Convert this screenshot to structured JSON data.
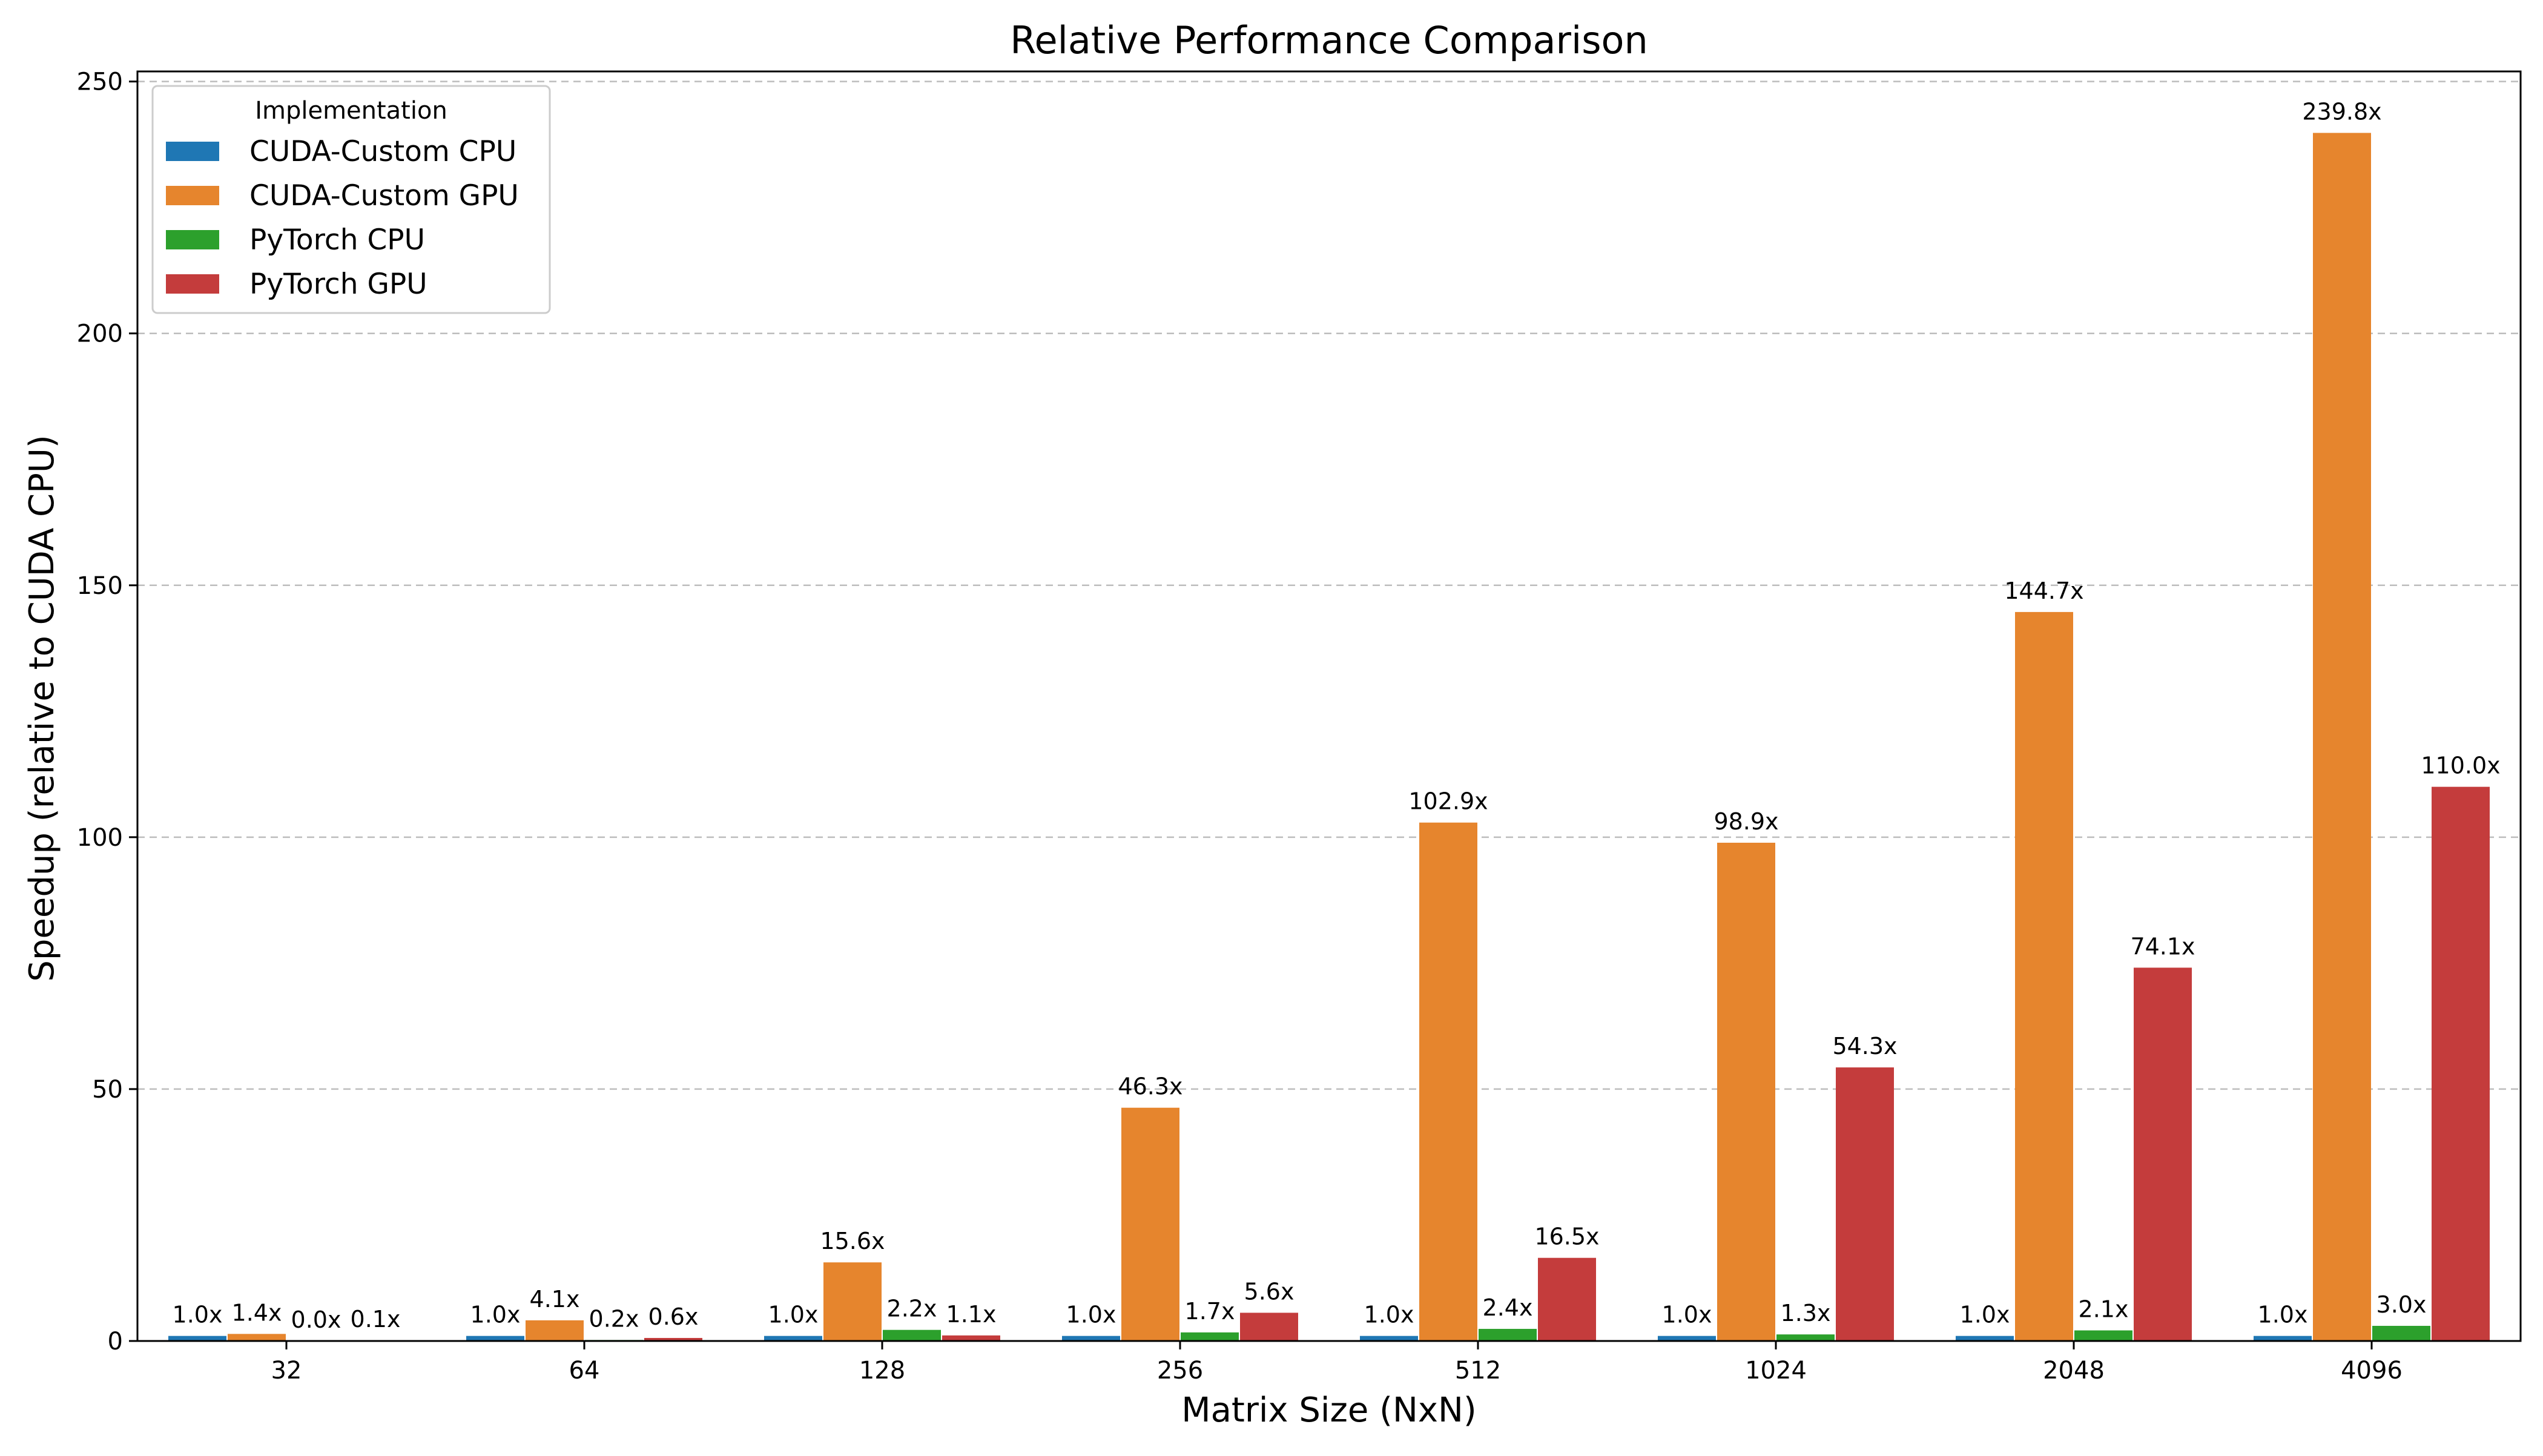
{
  "chart_data": {
    "type": "bar",
    "title": "Relative Performance Comparison",
    "xlabel": "Matrix Size (NxN)",
    "ylabel": "Speedup (relative to CUDA CPU)",
    "categories": [
      "32",
      "64",
      "128",
      "256",
      "512",
      "1024",
      "2048",
      "4096"
    ],
    "ylim": [
      0,
      252
    ],
    "yticks": [
      0,
      50,
      100,
      150,
      200,
      250
    ],
    "grid": "y-dashed",
    "legend": {
      "title": "Implementation",
      "position": "top-left"
    },
    "series": [
      {
        "name": "CUDA-Custom CPU",
        "color": "#1f77b4",
        "values": [
          1.0,
          1.0,
          1.0,
          1.0,
          1.0,
          1.0,
          1.0,
          1.0
        ],
        "labels": [
          "1.0x",
          "1.0x",
          "1.0x",
          "1.0x",
          "1.0x",
          "1.0x",
          "1.0x",
          "1.0x"
        ]
      },
      {
        "name": "CUDA-Custom GPU",
        "color": "#e6852d",
        "values": [
          1.4,
          4.1,
          15.6,
          46.3,
          102.9,
          98.9,
          144.7,
          239.8
        ],
        "labels": [
          "1.4x",
          "4.1x",
          "15.6x",
          "46.3x",
          "102.9x",
          "98.9x",
          "144.7x",
          "239.8x"
        ]
      },
      {
        "name": "PyTorch CPU",
        "color": "#2ca02c",
        "values": [
          0.0,
          0.2,
          2.2,
          1.7,
          2.4,
          1.3,
          2.1,
          3.0
        ],
        "labels": [
          "0.0x",
          "0.2x",
          "2.2x",
          "1.7x",
          "2.4x",
          "1.3x",
          "2.1x",
          "3.0x"
        ]
      },
      {
        "name": "PyTorch GPU",
        "color": "#c43c3c",
        "values": [
          0.1,
          0.6,
          1.1,
          5.6,
          16.5,
          54.3,
          74.1,
          110.0
        ],
        "labels": [
          "0.1x",
          "0.6x",
          "1.1x",
          "5.6x",
          "16.5x",
          "54.3x",
          "74.1x",
          "110.0x"
        ]
      }
    ]
  }
}
